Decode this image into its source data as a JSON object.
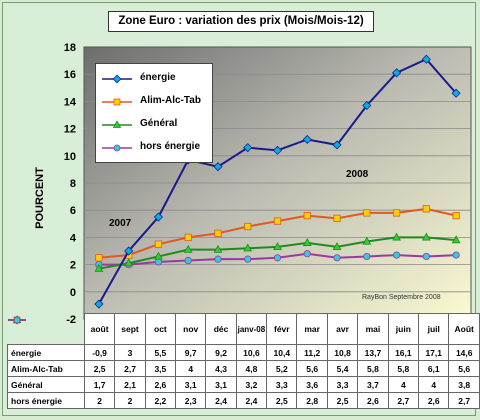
{
  "chart_data": {
    "type": "line",
    "title": "Zone Euro : variation des prix (Mois/Mois-12)",
    "ylabel": "POURCENT",
    "ylim": [
      -2,
      18
    ],
    "yticks": [
      -2,
      0,
      2,
      4,
      6,
      8,
      10,
      12,
      14,
      16,
      18
    ],
    "grid": "horizontal",
    "legend_position": "top-left",
    "categories": [
      "août",
      "sept",
      "oct",
      "nov",
      "déc",
      "janv-08",
      "févr",
      "mar",
      "avr",
      "mai",
      "juin",
      "juil",
      "Août"
    ],
    "series": [
      {
        "name": "énergie",
        "color": "#1a1a8c",
        "marker": "diamond",
        "marker_color": "#00b0e0",
        "values": [
          -0.9,
          3,
          5.5,
          9.7,
          9.2,
          10.6,
          10.4,
          11.2,
          10.8,
          13.7,
          16.1,
          17.1,
          14.6
        ],
        "labels": [
          "-0,9",
          "3",
          "5,5",
          "9,7",
          "9,2",
          "10,6",
          "10,4",
          "11,2",
          "10,8",
          "13,7",
          "16,1",
          "17,1",
          "14,6"
        ]
      },
      {
        "name": "Alim-Alc-Tab",
        "color": "#e05a20",
        "marker": "square",
        "marker_color": "#ffd000",
        "values": [
          2.5,
          2.7,
          3.5,
          4,
          4.3,
          4.8,
          5.2,
          5.6,
          5.4,
          5.8,
          5.8,
          6.1,
          5.6
        ],
        "labels": [
          "2,5",
          "2,7",
          "3,5",
          "4",
          "4,3",
          "4,8",
          "5,2",
          "5,6",
          "5,4",
          "5,8",
          "5,8",
          "6,1",
          "5,6"
        ]
      },
      {
        "name": "Général",
        "color": "#1f8a1f",
        "marker": "triangle",
        "marker_color": "#33cc33",
        "values": [
          1.7,
          2.1,
          2.6,
          3.1,
          3.1,
          3.2,
          3.3,
          3.6,
          3.3,
          3.7,
          4,
          4,
          3.8
        ],
        "labels": [
          "1,7",
          "2,1",
          "2,6",
          "3,1",
          "3,1",
          "3,2",
          "3,3",
          "3,6",
          "3,3",
          "3,7",
          "4",
          "4",
          "3,8"
        ]
      },
      {
        "name": "hors énergie",
        "color": "#9a3aa0",
        "marker": "circle",
        "marker_color": "#33ccdd",
        "values": [
          2,
          2,
          2.2,
          2.3,
          2.4,
          2.4,
          2.5,
          2.8,
          2.5,
          2.6,
          2.7,
          2.6,
          2.7
        ],
        "labels": [
          "2",
          "2",
          "2,2",
          "2,3",
          "2,4",
          "2,4",
          "2,5",
          "2,8",
          "2,5",
          "2,6",
          "2,7",
          "2,6",
          "2,7"
        ]
      }
    ],
    "annotations": [
      "2007",
      "2008"
    ],
    "credit": "RayBon Septembre 2008"
  }
}
